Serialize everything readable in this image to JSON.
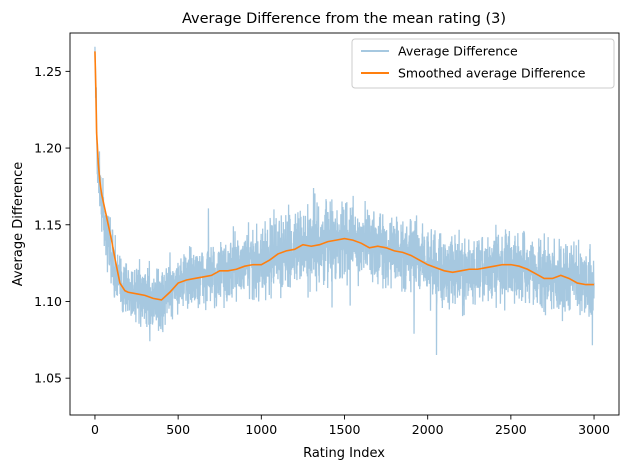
{
  "chart_data": {
    "type": "line",
    "title": "Average Difference from the mean rating (3)",
    "xlabel": "Rating Index",
    "ylabel": "Average Difference",
    "xlim": [
      -150,
      3150
    ],
    "ylim": [
      1.026,
      1.275
    ],
    "xticks": [
      0,
      500,
      1000,
      1500,
      2000,
      2500,
      3000
    ],
    "yticks": [
      1.05,
      1.1,
      1.15,
      1.2,
      1.25
    ],
    "xtick_labels": [
      "0",
      "500",
      "1000",
      "1500",
      "2000",
      "2500",
      "3000"
    ],
    "ytick_labels": [
      "1.05",
      "1.10",
      "1.15",
      "1.20",
      "1.25"
    ],
    "grid": false,
    "legend_position": "top-right",
    "series": [
      {
        "name": "Average Difference",
        "color": "#a6c8e0",
        "style": "noisy-raw",
        "x": [
          0,
          10,
          20,
          30,
          40,
          60,
          80,
          100,
          150,
          200,
          250,
          300,
          350,
          400,
          450,
          500,
          600,
          700,
          800,
          900,
          1000,
          1100,
          1200,
          1300,
          1400,
          1500,
          1600,
          1700,
          1800,
          1900,
          2000,
          2100,
          2200,
          2300,
          2400,
          2500,
          2600,
          2700,
          2800,
          2900,
          3000
        ],
        "values": [
          1.265,
          1.205,
          1.185,
          1.175,
          1.165,
          1.15,
          1.14,
          1.13,
          1.11,
          1.108,
          1.105,
          1.104,
          1.102,
          1.102,
          1.108,
          1.113,
          1.115,
          1.117,
          1.12,
          1.123,
          1.126,
          1.13,
          1.134,
          1.137,
          1.138,
          1.14,
          1.138,
          1.136,
          1.134,
          1.13,
          1.125,
          1.12,
          1.118,
          1.12,
          1.123,
          1.124,
          1.122,
          1.118,
          1.116,
          1.114,
          1.112
        ],
        "amplitude": [
          0.004,
          0.03,
          0.03,
          0.032,
          0.03,
          0.032,
          0.032,
          0.03,
          0.028,
          0.028,
          0.028,
          0.028,
          0.028,
          0.028,
          0.028,
          0.028,
          0.028,
          0.028,
          0.03,
          0.032,
          0.035,
          0.036,
          0.036,
          0.036,
          0.036,
          0.035,
          0.034,
          0.034,
          0.033,
          0.033,
          0.032,
          0.032,
          0.032,
          0.032,
          0.032,
          0.032,
          0.032,
          0.032,
          0.032,
          0.032,
          0.03
        ]
      },
      {
        "name": "Smoothed average Difference",
        "color": "#ff7f0e",
        "x": [
          0,
          5,
          10,
          20,
          30,
          40,
          60,
          80,
          100,
          120,
          150,
          180,
          200,
          250,
          300,
          350,
          400,
          450,
          500,
          550,
          600,
          650,
          700,
          750,
          800,
          850,
          900,
          950,
          1000,
          1050,
          1100,
          1150,
          1200,
          1250,
          1300,
          1350,
          1400,
          1450,
          1500,
          1550,
          1600,
          1650,
          1700,
          1750,
          1800,
          1850,
          1900,
          1950,
          2000,
          2050,
          2100,
          2150,
          2200,
          2250,
          2300,
          2350,
          2400,
          2450,
          2500,
          2550,
          2600,
          2650,
          2700,
          2750,
          2800,
          2850,
          2900,
          2950,
          3000
        ],
        "values": [
          1.263,
          1.24,
          1.21,
          1.19,
          1.178,
          1.17,
          1.16,
          1.15,
          1.14,
          1.128,
          1.112,
          1.107,
          1.106,
          1.105,
          1.104,
          1.102,
          1.101,
          1.106,
          1.112,
          1.114,
          1.115,
          1.116,
          1.117,
          1.12,
          1.12,
          1.121,
          1.123,
          1.124,
          1.124,
          1.127,
          1.131,
          1.133,
          1.134,
          1.137,
          1.136,
          1.137,
          1.139,
          1.14,
          1.141,
          1.14,
          1.138,
          1.135,
          1.136,
          1.135,
          1.133,
          1.132,
          1.13,
          1.127,
          1.124,
          1.122,
          1.12,
          1.119,
          1.12,
          1.121,
          1.121,
          1.122,
          1.123,
          1.124,
          1.124,
          1.123,
          1.121,
          1.118,
          1.115,
          1.115,
          1.117,
          1.115,
          1.112,
          1.111,
          1.111
        ]
      }
    ]
  }
}
